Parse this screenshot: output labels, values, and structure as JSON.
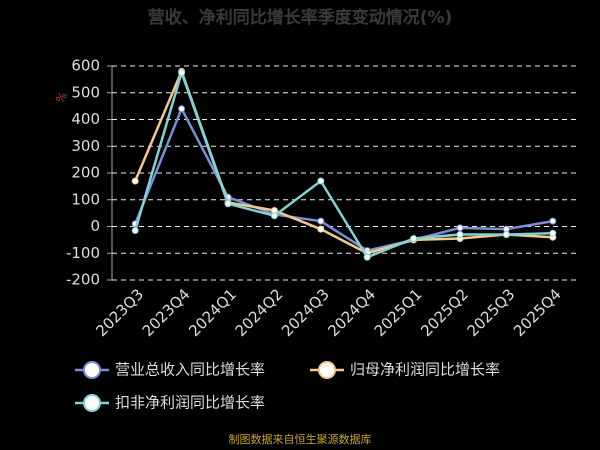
{
  "chart_data": {
    "type": "line",
    "title": "营收、净利同比增长率季度变动情况(%)",
    "y_label": "%",
    "source": "制图数据来自恒生聚源数据库",
    "categories": [
      "2023Q3",
      "2023Q4",
      "2024Q1",
      "2024Q2",
      "2024Q3",
      "2024Q4",
      "2025Q1",
      "2025Q2",
      "2025Q3",
      "2025Q4"
    ],
    "series": [
      {
        "name": "营业总收入同比增长率",
        "color": "#7b8fd6",
        "values": [
          10,
          440,
          110,
          45,
          20,
          -90,
          -50,
          -5,
          -10,
          20
        ]
      },
      {
        "name": "归母净利润同比增长率",
        "color": "#f3c98c",
        "values": [
          170,
          580,
          90,
          60,
          -10,
          -100,
          -50,
          -45,
          -30,
          -40
        ]
      },
      {
        "name": "扣非净利润同比增长率",
        "color": "#7fd3d6",
        "values": [
          -15,
          575,
          85,
          40,
          170,
          -115,
          -45,
          -30,
          -30,
          -25
        ]
      }
    ],
    "ylim": [
      -200,
      600
    ],
    "yticks": [
      -200,
      -100,
      0,
      100,
      200,
      300,
      400,
      500,
      600
    ],
    "grid": true
  }
}
